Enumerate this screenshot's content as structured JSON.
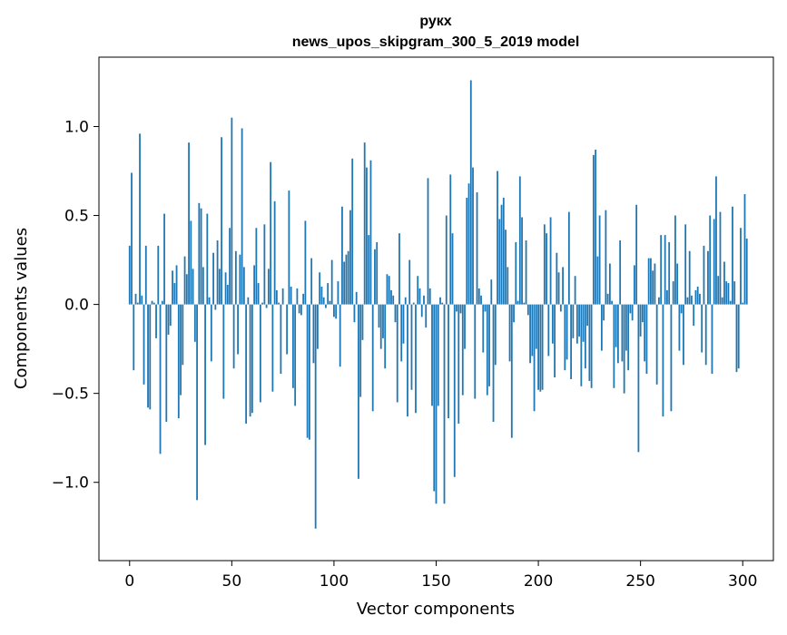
{
  "chart_data": {
    "type": "bar",
    "title_lines": [
      "рукх",
      "news_upos_skipgram_300_5_2019 model"
    ],
    "xlabel": "Vector components",
    "ylabel": "Components values",
    "xlim": [
      -15,
      315
    ],
    "ylim": [
      -1.44,
      1.39
    ],
    "xticks": [
      0,
      50,
      100,
      150,
      200,
      250,
      300
    ],
    "xtick_labels": [
      "0",
      "50",
      "100",
      "150",
      "200",
      "250",
      "300"
    ],
    "yticks": [
      -1.0,
      -0.5,
      0.0,
      0.5,
      1.0
    ],
    "ytick_labels": [
      "−1.0",
      "−0.5",
      "0.0",
      "0.5",
      "1.0"
    ],
    "bar_color": "#1f77b4",
    "values": [
      0.33,
      0.74,
      -0.37,
      0.06,
      0.01,
      0.96,
      0.05,
      -0.45,
      0.33,
      -0.58,
      -0.59,
      0.02,
      0.01,
      -0.19,
      0.33,
      -0.84,
      0.02,
      0.51,
      -0.66,
      -0.17,
      -0.12,
      0.19,
      0.12,
      0.22,
      -0.64,
      -0.51,
      -0.34,
      0.27,
      0.17,
      0.91,
      0.47,
      0.2,
      -0.21,
      -1.1,
      0.57,
      0.54,
      0.21,
      -0.79,
      0.51,
      0.04,
      -0.32,
      0.29,
      -0.03,
      0.36,
      0.2,
      0.94,
      -0.53,
      0.18,
      0.11,
      0.43,
      1.05,
      -0.36,
      0.3,
      -0.28,
      0.28,
      0.99,
      0.21,
      -0.67,
      0.04,
      -0.63,
      -0.61,
      0.22,
      0.43,
      0.12,
      -0.55,
      0.01,
      0.45,
      -0.02,
      0.2,
      0.8,
      -0.49,
      0.58,
      0.08,
      0.01,
      -0.39,
      0.09,
      0.0,
      -0.28,
      0.64,
      0.1,
      -0.47,
      -0.57,
      0.09,
      -0.05,
      -0.06,
      0.06,
      0.47,
      -0.75,
      -0.76,
      0.26,
      -0.33,
      -1.26,
      -0.25,
      0.18,
      0.1,
      0.04,
      -0.02,
      0.12,
      0.02,
      0.25,
      -0.07,
      -0.08,
      0.13,
      -0.35,
      0.55,
      0.24,
      0.28,
      0.3,
      0.53,
      0.82,
      -0.1,
      0.07,
      -0.98,
      -0.52,
      -0.2,
      0.91,
      0.77,
      0.39,
      0.81,
      -0.6,
      0.31,
      0.35,
      -0.13,
      -0.25,
      -0.19,
      -0.36,
      0.17,
      0.16,
      0.08,
      0.05,
      -0.1,
      -0.55,
      0.4,
      -0.32,
      -0.22,
      0.04,
      -0.63,
      0.25,
      -0.48,
      0.01,
      -0.61,
      0.16,
      0.09,
      -0.07,
      0.05,
      -0.13,
      0.71,
      0.09,
      -0.57,
      -1.05,
      -1.12,
      -0.57,
      0.04,
      0.01,
      -1.12,
      0.5,
      -0.64,
      0.73,
      0.4,
      -0.97,
      -0.04,
      -0.67,
      -0.05,
      -0.51,
      -0.25,
      0.6,
      0.68,
      1.26,
      0.77,
      -0.53,
      0.63,
      0.09,
      0.05,
      -0.27,
      -0.04,
      -0.51,
      -0.46,
      0.14,
      -0.66,
      -0.34,
      0.75,
      0.48,
      0.56,
      0.6,
      0.42,
      0.21,
      -0.32,
      -0.75,
      -0.1,
      0.35,
      0.02,
      0.72,
      0.49,
      0.01,
      0.36,
      -0.06,
      -0.33,
      -0.29,
      -0.6,
      -0.25,
      -0.48,
      -0.49,
      -0.48,
      0.45,
      0.4,
      -0.29,
      0.49,
      -0.22,
      -0.41,
      0.29,
      0.18,
      -0.04,
      0.21,
      -0.37,
      -0.31,
      0.52,
      -0.42,
      -0.19,
      0.16,
      -0.22,
      -0.18,
      -0.46,
      -0.21,
      -0.36,
      -0.12,
      -0.43,
      -0.47,
      0.84,
      0.87,
      0.27,
      0.5,
      -0.26,
      -0.09,
      0.53,
      0.06,
      0.23,
      0.02,
      -0.47,
      -0.24,
      -0.33,
      0.36,
      -0.32,
      -0.5,
      -0.26,
      -0.37,
      -0.05,
      -0.09,
      0.22,
      0.56,
      -0.83,
      -0.18,
      -0.1,
      -0.32,
      -0.39,
      0.26,
      0.26,
      0.19,
      0.23,
      -0.45,
      0.04,
      0.39,
      -0.63,
      0.39,
      0.08,
      0.35,
      -0.6,
      0.13,
      0.5,
      0.23,
      -0.26,
      -0.05,
      -0.34,
      0.45,
      0.04,
      0.3,
      0.05,
      -0.12,
      0.08,
      0.1,
      0.06,
      -0.27,
      0.33,
      -0.34,
      0.3,
      0.5,
      -0.39,
      0.48,
      0.72,
      0.16,
      0.52,
      0.04,
      0.24,
      0.13,
      0.12,
      0.02,
      0.55,
      0.13,
      -0.38,
      -0.36,
      0.43,
      0.01,
      0.62,
      0.37
    ]
  }
}
